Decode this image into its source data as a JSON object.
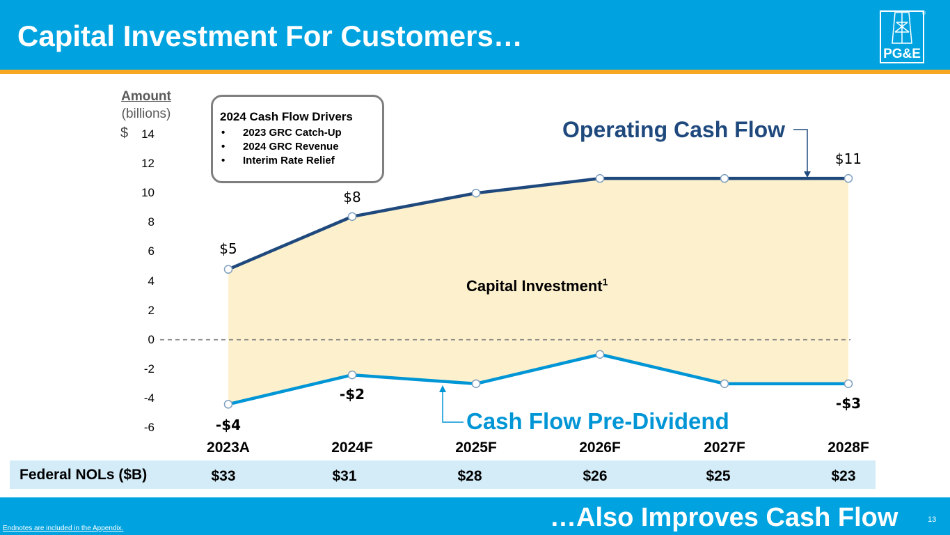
{
  "header": {
    "title": "Capital Investment For Customers…"
  },
  "logo": {
    "text": "PG&E",
    "registered": "®"
  },
  "footer": {
    "title": "…Also Improves Cash Flow",
    "page_number": "13",
    "endnote": "Endnotes are included in the Appendix."
  },
  "axis": {
    "title": "Amount",
    "unit": "(billions)",
    "currency": "$"
  },
  "drivers": {
    "title": "2024 Cash Flow Drivers",
    "items": [
      "2023 GRC Catch-Up",
      "2024 GRC Revenue",
      "Interim Rate Relief"
    ]
  },
  "labels": {
    "operating_cash_flow": "Operating Cash Flow",
    "cash_flow_pre_dividend": "Cash Flow Pre-Dividend",
    "capital_investment": "Capital Investment",
    "capital_investment_sup": "1"
  },
  "nol": {
    "label": "Federal NOLs ($B)",
    "values": [
      "$33",
      "$31",
      "$28",
      "$26",
      "$25",
      "$23"
    ]
  },
  "colors": {
    "header": "#00a3e0",
    "accent": "#f7a823",
    "operating_line": "#1f497d",
    "pre_dividend_line": "#0096d6",
    "area_fill": "#fdf0cd"
  },
  "chart_data": {
    "type": "line",
    "categories": [
      "2023A",
      "2024F",
      "2025F",
      "2026F",
      "2027F",
      "2028F"
    ],
    "ylim": [
      -6,
      14
    ],
    "yticks": [
      14,
      12,
      10,
      8,
      6,
      4,
      2,
      0,
      -2,
      -4,
      -6
    ],
    "series": [
      {
        "name": "Operating Cash Flow",
        "values": [
          4.8,
          8.4,
          10.0,
          11.0,
          11.0,
          11.0
        ],
        "labels": [
          "$5",
          "$8",
          "",
          "",
          "",
          "$11"
        ]
      },
      {
        "name": "Cash Flow Pre-Dividend",
        "values": [
          -4.4,
          -2.4,
          -3.0,
          -1.0,
          -3.0,
          -3.0
        ],
        "labels": [
          "-$4",
          "-$2",
          "",
          "",
          "",
          "-$3"
        ]
      }
    ],
    "shaded_area": "Capital Investment",
    "zero_line": "dashed"
  }
}
